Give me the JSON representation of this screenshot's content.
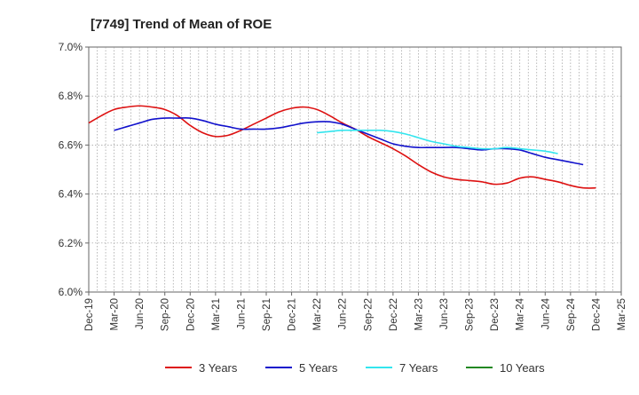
{
  "chart_data": {
    "type": "line",
    "title": "[7749]  Trend of Mean of ROE",
    "xlabel": "",
    "ylabel": "",
    "ylim": [
      6.0,
      7.0
    ],
    "y_ticks": [
      "6.0%",
      "6.2%",
      "6.4%",
      "6.6%",
      "6.8%",
      "7.0%"
    ],
    "x_tick_labels": [
      "Dec-19",
      "Mar-20",
      "Jun-20",
      "Sep-20",
      "Dec-20",
      "Mar-21",
      "Jun-21",
      "Sep-21",
      "Dec-21",
      "Mar-22",
      "Jun-22",
      "Sep-22",
      "Dec-22",
      "Mar-23",
      "Jun-23",
      "Sep-23",
      "Dec-23",
      "Mar-24",
      "Jun-24",
      "Sep-24",
      "Dec-24",
      "Mar-25"
    ],
    "grid": true,
    "legend_position": "bottom",
    "series": [
      {
        "name": "3 Years",
        "color": "#dd1111",
        "values": [
          6.69,
          6.72,
          6.745,
          6.755,
          6.76,
          6.755,
          6.745,
          6.72,
          6.68,
          6.65,
          6.635,
          6.64,
          6.66,
          6.685,
          6.71,
          6.735,
          6.75,
          6.755,
          6.745,
          6.72,
          6.69,
          6.665,
          6.635,
          6.61,
          6.585,
          6.555,
          6.52,
          6.49,
          6.47,
          6.46,
          6.455,
          6.45,
          6.44,
          6.445,
          6.465,
          6.47,
          6.46,
          6.45,
          6.435,
          6.425,
          6.425
        ]
      },
      {
        "name": "5 Years",
        "color": "#1111cc",
        "values": [
          null,
          null,
          6.66,
          6.675,
          6.69,
          6.705,
          6.71,
          6.71,
          6.71,
          6.7,
          6.685,
          6.675,
          6.665,
          6.665,
          6.665,
          6.67,
          6.68,
          6.69,
          6.695,
          6.695,
          6.685,
          6.665,
          6.645,
          6.625,
          6.605,
          6.595,
          6.59,
          6.59,
          6.59,
          6.59,
          6.585,
          6.58,
          6.585,
          6.585,
          6.58,
          6.565,
          6.55,
          6.54,
          6.53,
          6.52
        ]
      },
      {
        "name": "7 Years",
        "color": "#33e5ee",
        "values": [
          null,
          null,
          null,
          null,
          null,
          null,
          null,
          null,
          null,
          null,
          null,
          null,
          null,
          null,
          null,
          null,
          null,
          null,
          6.65,
          6.655,
          6.66,
          6.66,
          6.66,
          6.66,
          6.655,
          6.645,
          6.63,
          6.615,
          6.605,
          6.595,
          6.59,
          6.585,
          6.585,
          6.59,
          6.585,
          6.58,
          6.575,
          6.565
        ]
      },
      {
        "name": "10 Years",
        "color": "#228822",
        "values": []
      }
    ]
  }
}
